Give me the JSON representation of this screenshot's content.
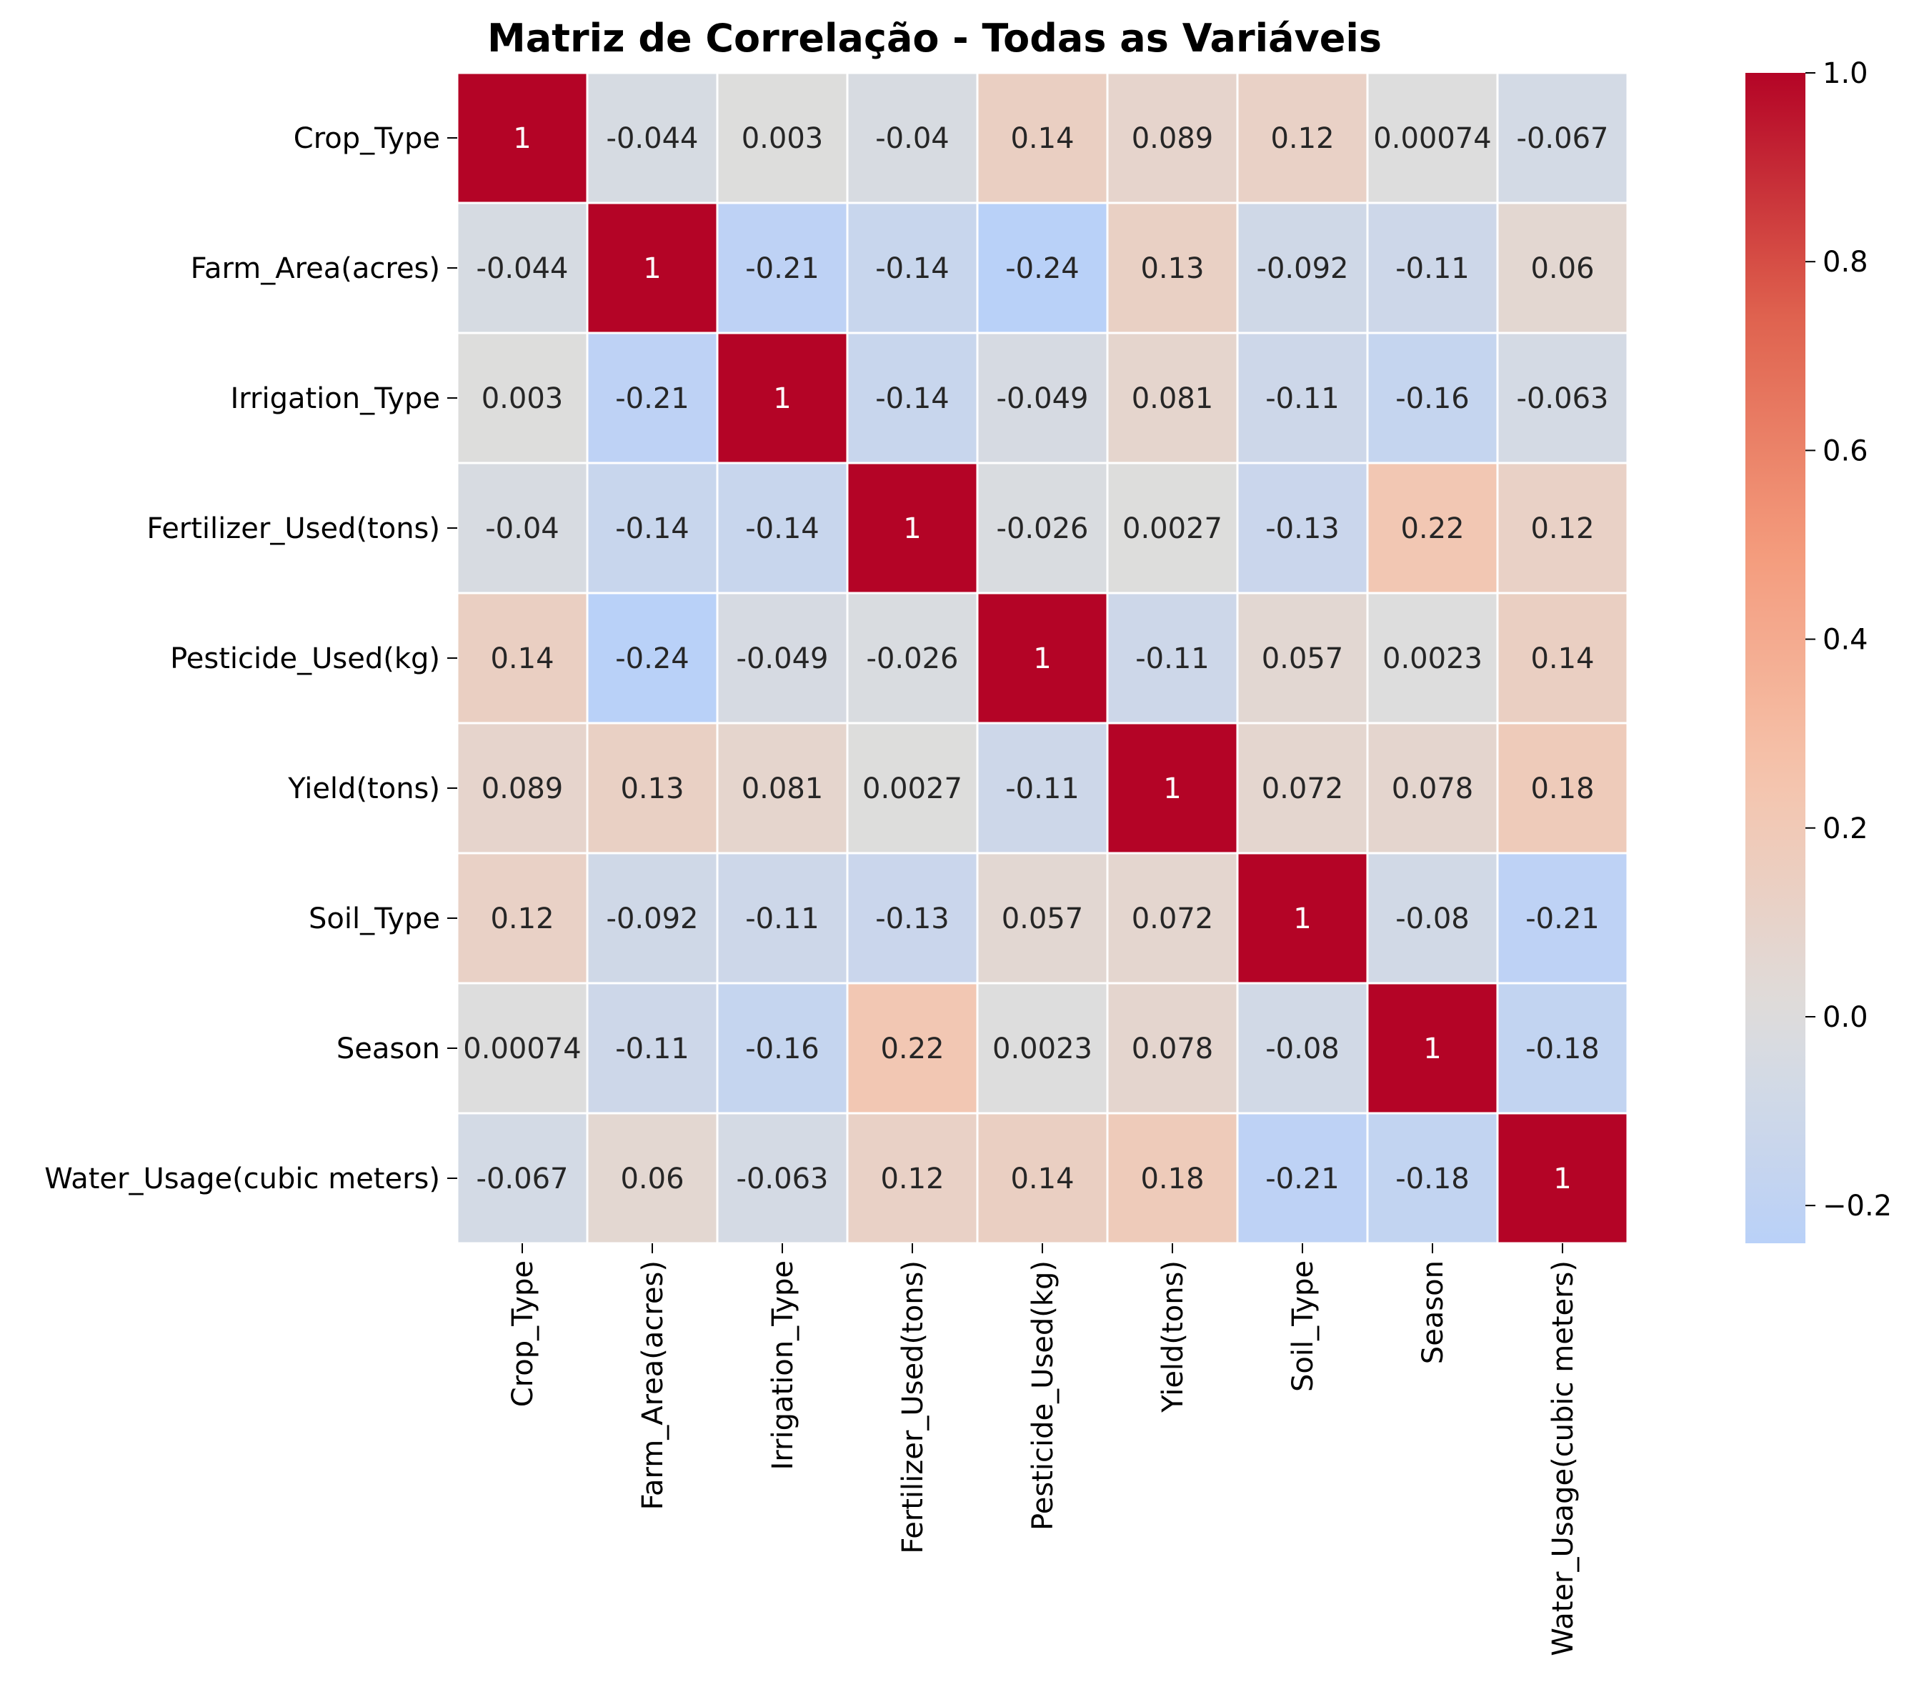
{
  "chart_data": {
    "type": "heatmap",
    "title": "Matriz de Correlação - Todas as Variáveis",
    "xlabel": "",
    "ylabel": "",
    "labels": [
      "Crop_Type",
      "Farm_Area(acres)",
      "Irrigation_Type",
      "Fertilizer_Used(tons)",
      "Pesticide_Used(kg)",
      "Yield(tons)",
      "Soil_Type",
      "Season",
      "Water_Usage(cubic meters)"
    ],
    "values": [
      [
        1,
        -0.044,
        0.003,
        -0.04,
        0.14,
        0.089,
        0.12,
        0.00074,
        -0.067
      ],
      [
        -0.044,
        1,
        -0.21,
        -0.14,
        -0.24,
        0.13,
        -0.092,
        -0.11,
        0.06
      ],
      [
        0.003,
        -0.21,
        1,
        -0.14,
        -0.049,
        0.081,
        -0.11,
        -0.16,
        -0.063
      ],
      [
        -0.04,
        -0.14,
        -0.14,
        1,
        -0.026,
        0.0027,
        -0.13,
        0.22,
        0.12
      ],
      [
        0.14,
        -0.24,
        -0.049,
        -0.026,
        1,
        -0.11,
        0.057,
        0.0023,
        0.14
      ],
      [
        0.089,
        0.13,
        0.081,
        0.0027,
        -0.11,
        1,
        0.072,
        0.078,
        0.18
      ],
      [
        0.12,
        -0.092,
        -0.11,
        -0.13,
        0.057,
        0.072,
        1,
        -0.08,
        -0.21
      ],
      [
        0.00074,
        -0.11,
        -0.16,
        0.22,
        0.0023,
        0.078,
        -0.08,
        1,
        -0.18
      ],
      [
        -0.067,
        0.06,
        -0.063,
        0.12,
        0.14,
        0.18,
        -0.21,
        -0.18,
        1
      ]
    ],
    "value_labels": [
      [
        "1",
        "-0.044",
        "0.003",
        "-0.04",
        "0.14",
        "0.089",
        "0.12",
        "0.00074",
        "-0.067"
      ],
      [
        "-0.044",
        "1",
        "-0.21",
        "-0.14",
        "-0.24",
        "0.13",
        "-0.092",
        "-0.11",
        "0.06"
      ],
      [
        "0.003",
        "-0.21",
        "1",
        "-0.14",
        "-0.049",
        "0.081",
        "-0.11",
        "-0.16",
        "-0.063"
      ],
      [
        "-0.04",
        "-0.14",
        "-0.14",
        "1",
        "-0.026",
        "0.0027",
        "-0.13",
        "0.22",
        "0.12"
      ],
      [
        "0.14",
        "-0.24",
        "-0.049",
        "-0.026",
        "1",
        "-0.11",
        "0.057",
        "0.0023",
        "0.14"
      ],
      [
        "0.089",
        "0.13",
        "0.081",
        "0.0027",
        "-0.11",
        "1",
        "0.072",
        "0.078",
        "0.18"
      ],
      [
        "0.12",
        "-0.092",
        "-0.11",
        "-0.13",
        "0.057",
        "0.072",
        "1",
        "-0.08",
        "-0.21"
      ],
      [
        "0.00074",
        "-0.11",
        "-0.16",
        "0.22",
        "0.0023",
        "0.078",
        "-0.08",
        "1",
        "-0.18"
      ],
      [
        "-0.067",
        "0.06",
        "-0.063",
        "0.12",
        "0.14",
        "0.18",
        "-0.21",
        "-0.18",
        "1"
      ]
    ],
    "colorbar": {
      "colormap": "coolwarm",
      "center": 0,
      "vmin": -0.24,
      "vmax": 1,
      "ticks": [
        1,
        0.8,
        0.6,
        0.4,
        0.2,
        0,
        -0.2
      ],
      "tick_labels": [
        "1.0",
        "0.8",
        "0.6",
        "0.4",
        "0.2",
        "0.0",
        "−0.2"
      ]
    },
    "grid": false,
    "cell_border_color": "#ffffff"
  }
}
